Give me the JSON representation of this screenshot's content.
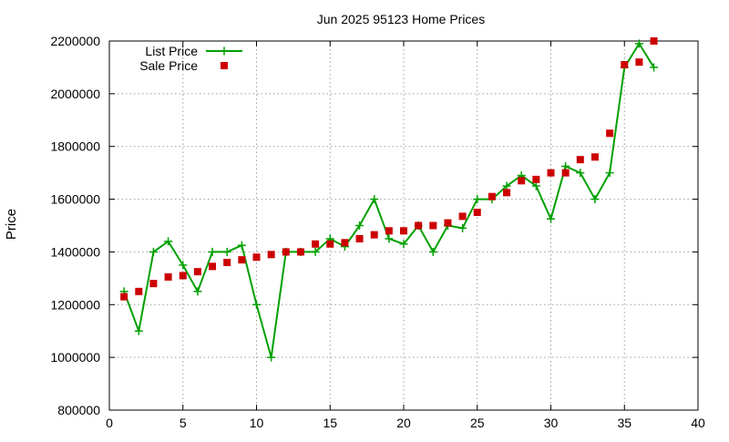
{
  "chart_data": {
    "type": "line",
    "title": "Jun 2025 95123 Home Prices",
    "xlabel": "",
    "ylabel": "Price",
    "xlim": [
      0,
      40
    ],
    "ylim": [
      800000,
      2200000
    ],
    "x_ticks": [
      0,
      5,
      10,
      15,
      20,
      25,
      30,
      35,
      40
    ],
    "y_ticks": [
      800000,
      1000000,
      1200000,
      1400000,
      1600000,
      1800000,
      2000000,
      2200000
    ],
    "grid": true,
    "legend_position": "top-left",
    "series": [
      {
        "name": "List Price",
        "style": "linespoints",
        "color": "#00a000",
        "marker": "plus",
        "x": [
          1,
          2,
          3,
          4,
          5,
          6,
          7,
          8,
          9,
          10,
          11,
          12,
          13,
          14,
          15,
          16,
          17,
          18,
          19,
          20,
          21,
          22,
          23,
          24,
          25,
          26,
          27,
          28,
          29,
          30,
          31,
          32,
          33,
          34,
          35,
          36,
          37
        ],
        "values": [
          1250000,
          1100000,
          1400000,
          1440000,
          1350000,
          1250000,
          1400000,
          1400000,
          1425000,
          1200000,
          1000000,
          1400000,
          1400000,
          1400000,
          1450000,
          1420000,
          1500000,
          1600000,
          1450000,
          1430000,
          1500000,
          1400000,
          1500000,
          1490000,
          1600000,
          1600000,
          1650000,
          1690000,
          1650000,
          1525000,
          1725000,
          1700000,
          1600000,
          1700000,
          2100000,
          2190000,
          2100000
        ]
      },
      {
        "name": "Sale Price",
        "style": "points",
        "color": "#cc0000",
        "marker": "square",
        "x": [
          1,
          2,
          3,
          4,
          5,
          6,
          7,
          8,
          9,
          10,
          11,
          12,
          13,
          14,
          15,
          16,
          17,
          18,
          19,
          20,
          21,
          22,
          23,
          24,
          25,
          26,
          27,
          28,
          29,
          30,
          31,
          32,
          33,
          34,
          35,
          36,
          37
        ],
        "values": [
          1230000,
          1250000,
          1280000,
          1305000,
          1310000,
          1325000,
          1345000,
          1360000,
          1370000,
          1380000,
          1390000,
          1400000,
          1400000,
          1430000,
          1430000,
          1435000,
          1450000,
          1465000,
          1480000,
          1480000,
          1500000,
          1500000,
          1510000,
          1535000,
          1550000,
          1610000,
          1625000,
          1670000,
          1675000,
          1700000,
          1700000,
          1750000,
          1760000,
          1850000,
          2110000,
          2120000,
          2200000
        ]
      }
    ]
  }
}
